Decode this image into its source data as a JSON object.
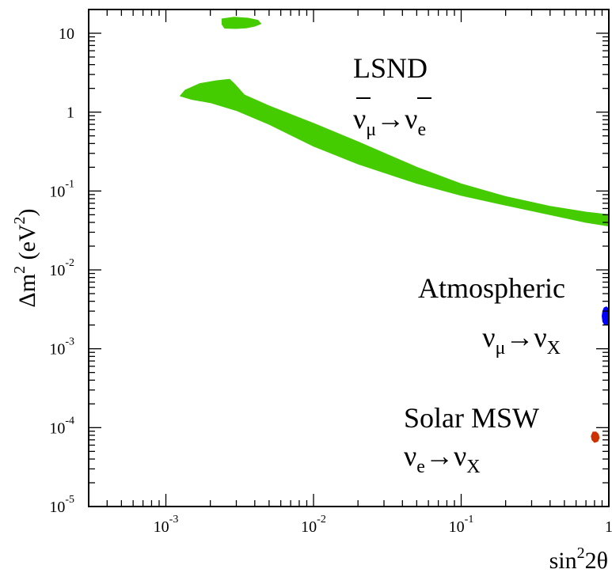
{
  "chart_data": {
    "type": "region",
    "x_axis": {
      "label": "sin²2θ",
      "label_base": "sin",
      "label_sup": "2",
      "label_rest": "2θ",
      "scale": "log",
      "range": [
        0.0003,
        1
      ],
      "major_ticks": [
        {
          "value": 0.001,
          "base": "10",
          "exp": "-3"
        },
        {
          "value": 0.01,
          "base": "10",
          "exp": "-2"
        },
        {
          "value": 0.1,
          "base": "10",
          "exp": "-1"
        },
        {
          "value": 1,
          "base": "1",
          "exp": ""
        }
      ]
    },
    "y_axis": {
      "label": "Δm² (eV²)",
      "label_a": "Δm",
      "label_sup1": "2",
      "label_b": " (eV",
      "label_sup2": "2",
      "label_c": ")",
      "scale": "log",
      "range": [
        1e-05,
        20
      ],
      "major_ticks": [
        {
          "value": 10,
          "base": "10",
          "exp": ""
        },
        {
          "value": 1,
          "base": "1",
          "exp": ""
        },
        {
          "value": 0.1,
          "base": "10",
          "exp": "-1"
        },
        {
          "value": 0.01,
          "base": "10",
          "exp": "-2"
        },
        {
          "value": 0.001,
          "base": "10",
          "exp": "-3"
        },
        {
          "value": 0.0001,
          "base": "10",
          "exp": "-4"
        },
        {
          "value": 1e-05,
          "base": "10",
          "exp": "-5"
        }
      ]
    },
    "grid": false,
    "regions": [
      {
        "name": "LSND",
        "subtitle": "ν̄μ→ν̄e",
        "color": "#44cc00",
        "polygons": [
          [
            [
              0.00135,
              1.9
            ],
            [
              0.0017,
              2.3
            ],
            [
              0.0022,
              2.5
            ],
            [
              0.0027,
              2.6
            ],
            [
              0.0029,
              2.3
            ],
            [
              0.0031,
              2.0
            ],
            [
              0.0034,
              1.65
            ],
            [
              0.005,
              1.2
            ],
            [
              0.01,
              0.72
            ],
            [
              0.02,
              0.42
            ],
            [
              0.05,
              0.2
            ],
            [
              0.1,
              0.123
            ],
            [
              0.2,
              0.085
            ],
            [
              0.4,
              0.064
            ],
            [
              0.7,
              0.054
            ],
            [
              1.0,
              0.05
            ],
            [
              1.0,
              0.036
            ],
            [
              0.7,
              0.04
            ],
            [
              0.4,
              0.05
            ],
            [
              0.2,
              0.066
            ],
            [
              0.1,
              0.088
            ],
            [
              0.05,
              0.125
            ],
            [
              0.02,
              0.22
            ],
            [
              0.01,
              0.37
            ],
            [
              0.005,
              0.7
            ],
            [
              0.003,
              1.05
            ],
            [
              0.002,
              1.32
            ],
            [
              0.0015,
              1.45
            ],
            [
              0.00125,
              1.6
            ]
          ],
          [
            [
              0.0024,
              15.2
            ],
            [
              0.0029,
              16.0
            ],
            [
              0.0036,
              15.5
            ],
            [
              0.0042,
              14.6
            ],
            [
              0.0044,
              13.2
            ],
            [
              0.004,
              12.3
            ],
            [
              0.0035,
              11.7
            ],
            [
              0.003,
              11.5
            ],
            [
              0.0025,
              11.6
            ],
            [
              0.0024,
              13.0
            ]
          ]
        ]
      },
      {
        "name": "Atmospheric",
        "subtitle": "νμ→νX",
        "color": "#0000ff",
        "polygons": [
          [
            [
              0.96,
              0.0034
            ],
            [
              0.93,
              0.0033
            ],
            [
              0.91,
              0.003
            ],
            [
              0.9,
              0.0026
            ],
            [
              0.91,
              0.0022
            ],
            [
              0.94,
              0.002
            ],
            [
              0.98,
              0.00205
            ],
            [
              1.0,
              0.0022
            ],
            [
              1.0,
              0.0032
            ]
          ]
        ]
      },
      {
        "name": "Solar MSW",
        "subtitle": "νe→νX",
        "color": "#cc3300",
        "polygons": [
          [
            [
              0.78,
              8.8e-05
            ],
            [
              0.82,
              8.8e-05
            ],
            [
              0.85,
              8.2e-05
            ],
            [
              0.86,
              7.4e-05
            ],
            [
              0.84,
              6.7e-05
            ],
            [
              0.8,
              6.5e-05
            ],
            [
              0.77,
              7e-05
            ],
            [
              0.76,
              7.8e-05
            ]
          ]
        ]
      }
    ],
    "annotations": [
      {
        "region": "LSND",
        "line1": "LSND",
        "sym1": "ν",
        "sub1": "μ",
        "arrow": "→",
        "sym2": "ν",
        "sub2": "e",
        "bar": true
      },
      {
        "region": "Atmospheric",
        "line1": "Atmospheric",
        "sym1": "ν",
        "sub1": "μ",
        "arrow": "→",
        "sym2": "ν",
        "sub2": "X",
        "bar": false
      },
      {
        "region": "Solar MSW",
        "line1": "Solar MSW",
        "sym1": "ν",
        "sub1": "e",
        "arrow": "→",
        "sym2": "ν",
        "sub2": "X",
        "bar": false
      }
    ]
  }
}
